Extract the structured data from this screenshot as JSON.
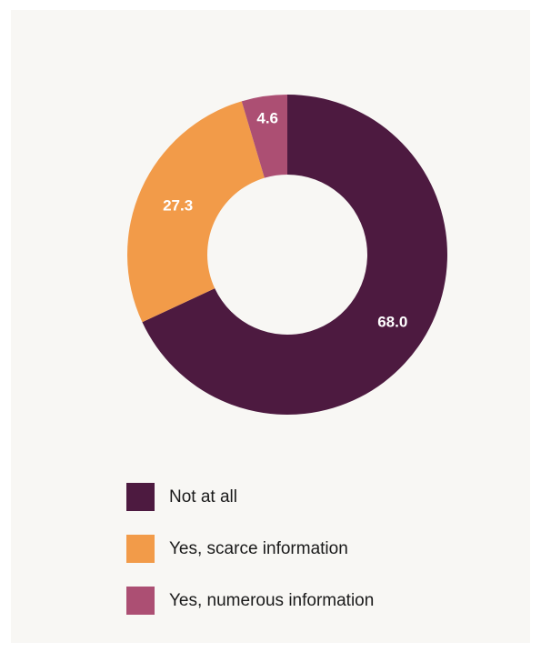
{
  "chart_data": {
    "type": "pie",
    "donut": true,
    "categories": [
      "Not at all",
      "Yes, scarce information",
      "Yes, numerous information"
    ],
    "values": [
      68.0,
      27.3,
      4.6
    ],
    "data_labels": [
      "68.0",
      "27.3",
      "4.6"
    ],
    "colors": [
      "#4d1a40",
      "#f29b49",
      "#ac4f73"
    ],
    "start_angle": "12 o'clock",
    "direction": "clockwise",
    "legend_position": "bottom"
  }
}
